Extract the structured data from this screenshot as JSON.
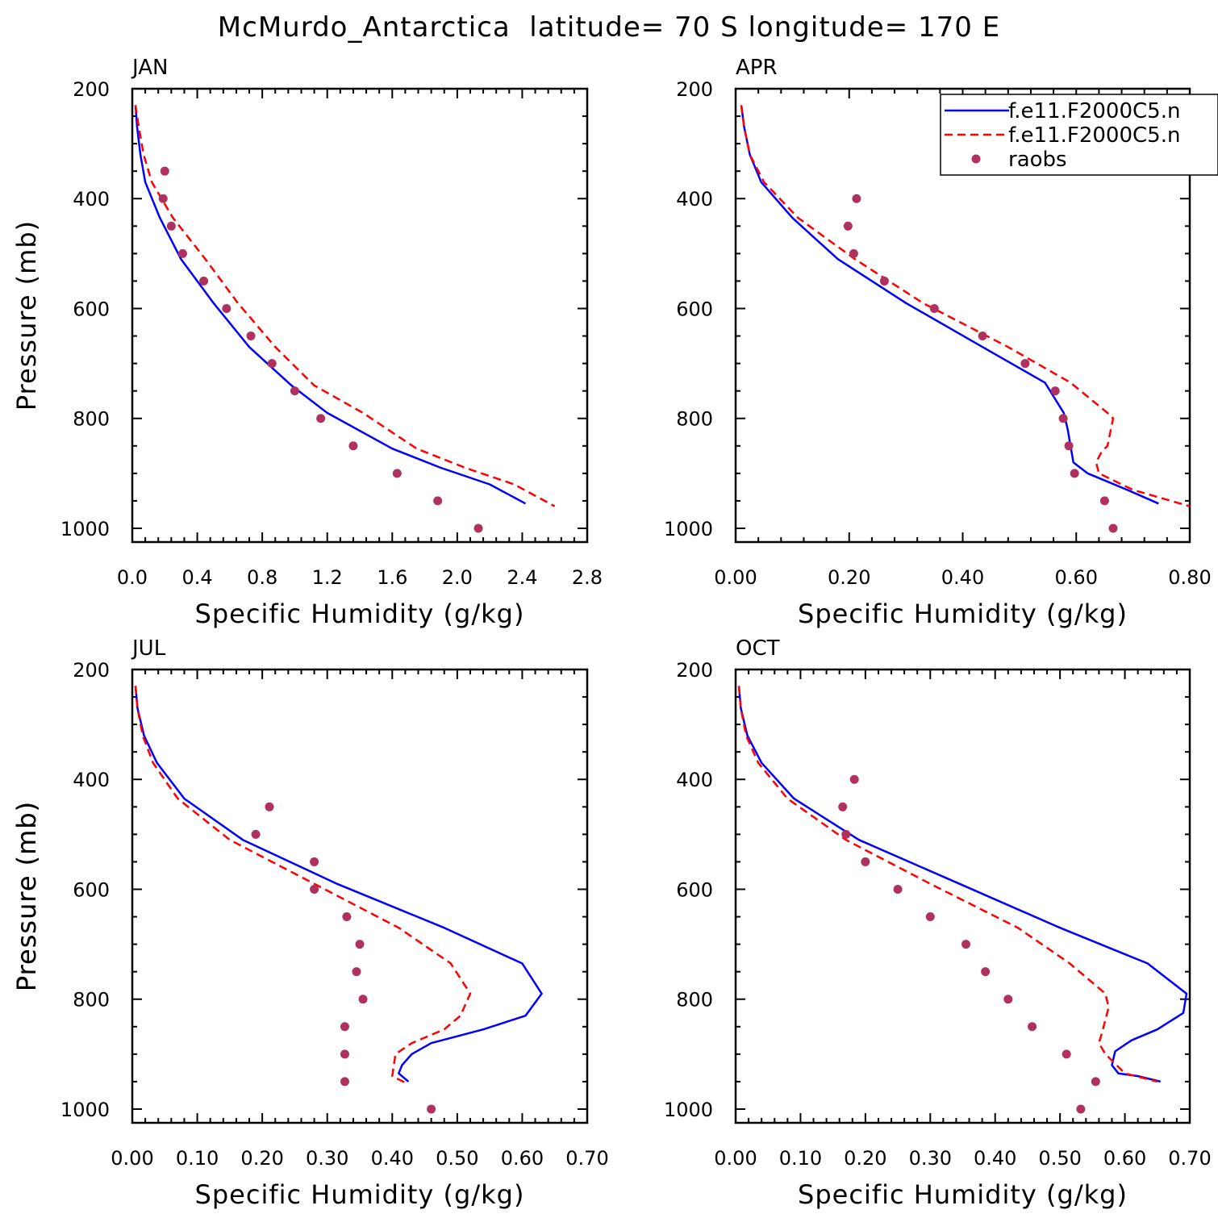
{
  "figure": {
    "title": "McMurdo_Antarctica  latitude= 70 S longitude= 170 E"
  },
  "legend": {
    "entries": [
      {
        "label": "f.e11.F2000C5.n",
        "color": "#0000ff",
        "style": "solid"
      },
      {
        "label": "f.e11.F2000C5.n",
        "color": "#ff0000",
        "style": "dashed"
      },
      {
        "label": "raobs",
        "color": "#b03060",
        "style": "marker"
      }
    ]
  },
  "chart_data": [
    {
      "type": "line",
      "panel": "JAN",
      "xlabel": "Specific Humidity (g/kg)",
      "ylabel": "Pressure (mb)",
      "xlim": [
        0,
        2.8
      ],
      "ylim": [
        1025,
        200
      ],
      "xticks": [
        "0.0",
        "0.4",
        "0.8",
        "1.2",
        "1.6",
        "2.0",
        "2.4",
        "2.8"
      ],
      "yticks": [
        "200",
        "400",
        "600",
        "800",
        "1000"
      ],
      "series": [
        {
          "color": "#0000ff",
          "style": "solid",
          "x": [
            0.02,
            0.03,
            0.05,
            0.08,
            0.17,
            0.3,
            0.5,
            0.72,
            0.98,
            1.2,
            1.6,
            1.9,
            2.2,
            2.42
          ],
          "y": [
            230,
            270,
            320,
            370,
            435,
            510,
            590,
            670,
            740,
            790,
            855,
            890,
            920,
            955
          ]
        },
        {
          "color": "#ff0000",
          "style": "dashed",
          "x": [
            0.02,
            0.04,
            0.07,
            0.12,
            0.25,
            0.45,
            0.65,
            0.88,
            1.12,
            1.42,
            1.75,
            2.05,
            2.35,
            2.6
          ],
          "y": [
            230,
            270,
            320,
            370,
            435,
            510,
            590,
            670,
            740,
            790,
            855,
            890,
            920,
            960
          ]
        },
        {
          "color": "#b03060",
          "style": "marker",
          "x": [
            0.2,
            0.19,
            0.24,
            0.31,
            0.44,
            0.58,
            0.73,
            0.86,
            1.0,
            1.16,
            1.36,
            1.63,
            1.88,
            2.13
          ],
          "y": [
            350,
            400,
            450,
            500,
            550,
            600,
            650,
            700,
            750,
            800,
            850,
            900,
            950,
            1000
          ]
        }
      ]
    },
    {
      "type": "line",
      "panel": "APR",
      "xlabel": "Specific Humidity (g/kg)",
      "ylabel": "",
      "xlim": [
        0,
        0.8
      ],
      "ylim": [
        1025,
        200
      ],
      "xticks": [
        "0.00",
        "0.20",
        "0.40",
        "0.60",
        "0.80"
      ],
      "yticks": [
        "200",
        "400",
        "600",
        "800",
        "1000"
      ],
      "series": [
        {
          "color": "#0000ff",
          "style": "solid",
          "x": [
            0.01,
            0.015,
            0.025,
            0.045,
            0.1,
            0.18,
            0.3,
            0.435,
            0.545,
            0.578,
            0.585,
            0.595,
            0.62,
            0.69,
            0.745
          ],
          "y": [
            230,
            270,
            320,
            370,
            435,
            510,
            590,
            670,
            735,
            790,
            820,
            880,
            900,
            930,
            955
          ]
        },
        {
          "color": "#ff0000",
          "style": "dashed",
          "x": [
            0.01,
            0.015,
            0.025,
            0.05,
            0.11,
            0.21,
            0.33,
            0.48,
            0.59,
            0.655,
            0.665,
            0.655,
            0.645,
            0.635,
            0.64,
            0.7,
            0.8
          ],
          "y": [
            230,
            270,
            320,
            370,
            435,
            510,
            590,
            670,
            735,
            790,
            800,
            850,
            860,
            880,
            900,
            930,
            960
          ]
        },
        {
          "color": "#b03060",
          "style": "marker",
          "x": [
            0.213,
            0.198,
            0.208,
            0.262,
            0.35,
            0.435,
            0.51,
            0.563,
            0.577,
            0.587,
            0.597,
            0.65,
            0.665
          ],
          "y": [
            400,
            450,
            500,
            550,
            600,
            650,
            700,
            750,
            800,
            850,
            900,
            950,
            1000
          ]
        }
      ]
    },
    {
      "type": "line",
      "panel": "JUL",
      "xlabel": "Specific Humidity (g/kg)",
      "ylabel": "Pressure (mb)",
      "xlim": [
        0,
        0.7
      ],
      "ylim": [
        1025,
        200
      ],
      "xticks": [
        "0.00",
        "0.10",
        "0.20",
        "0.30",
        "0.40",
        "0.50",
        "0.60",
        "0.70"
      ],
      "yticks": [
        "200",
        "400",
        "600",
        "800",
        "1000"
      ],
      "series": [
        {
          "color": "#0000ff",
          "style": "solid",
          "x": [
            0.005,
            0.008,
            0.018,
            0.038,
            0.08,
            0.17,
            0.315,
            0.48,
            0.6,
            0.63,
            0.605,
            0.54,
            0.46,
            0.43,
            0.415,
            0.41,
            0.425
          ],
          "y": [
            230,
            270,
            320,
            370,
            435,
            510,
            590,
            670,
            735,
            790,
            830,
            855,
            880,
            900,
            920,
            935,
            950
          ]
        },
        {
          "color": "#ff0000",
          "style": "dashed",
          "x": [
            0.005,
            0.008,
            0.016,
            0.032,
            0.07,
            0.15,
            0.28,
            0.41,
            0.49,
            0.52,
            0.505,
            0.48,
            0.43,
            0.405,
            0.4,
            0.425
          ],
          "y": [
            230,
            270,
            320,
            370,
            435,
            510,
            590,
            670,
            735,
            790,
            830,
            855,
            880,
            900,
            940,
            955
          ]
        },
        {
          "color": "#b03060",
          "style": "marker",
          "x": [
            0.211,
            0.19,
            0.28,
            0.28,
            0.33,
            0.35,
            0.345,
            0.355,
            0.327,
            0.327,
            0.327,
            0.46
          ],
          "y": [
            450,
            500,
            550,
            600,
            650,
            700,
            750,
            800,
            850,
            900,
            950,
            1000
          ]
        }
      ]
    },
    {
      "type": "line",
      "panel": "OCT",
      "xlabel": "Specific Humidity (g/kg)",
      "ylabel": "Pressure (mb)",
      "xlim": [
        0,
        0.7
      ],
      "ylim": [
        1025,
        200
      ],
      "xticks": [
        "0.00",
        "0.10",
        "0.20",
        "0.30",
        "0.40",
        "0.50",
        "0.60",
        "0.70"
      ],
      "yticks": [
        "200",
        "400",
        "600",
        "800",
        "1000"
      ],
      "series": [
        {
          "color": "#0000ff",
          "style": "solid",
          "x": [
            0.005,
            0.008,
            0.018,
            0.04,
            0.09,
            0.19,
            0.345,
            0.5,
            0.635,
            0.695,
            0.69,
            0.65,
            0.61,
            0.585,
            0.58,
            0.59,
            0.62,
            0.655
          ],
          "y": [
            230,
            270,
            320,
            370,
            435,
            510,
            590,
            670,
            735,
            790,
            825,
            855,
            875,
            895,
            920,
            935,
            940,
            950
          ]
        },
        {
          "color": "#ff0000",
          "style": "dashed",
          "x": [
            0.005,
            0.008,
            0.016,
            0.035,
            0.08,
            0.17,
            0.3,
            0.435,
            0.515,
            0.57,
            0.575,
            0.565,
            0.56,
            0.57,
            0.6,
            0.65
          ],
          "y": [
            230,
            270,
            320,
            370,
            435,
            510,
            590,
            670,
            735,
            790,
            815,
            860,
            880,
            900,
            935,
            950
          ]
        },
        {
          "color": "#b03060",
          "style": "marker",
          "x": [
            0.183,
            0.165,
            0.17,
            0.2,
            0.25,
            0.3,
            0.355,
            0.385,
            0.42,
            0.457,
            0.51,
            0.555,
            0.532
          ],
          "y": [
            400,
            450,
            500,
            550,
            600,
            650,
            700,
            750,
            800,
            850,
            900,
            950,
            1000
          ]
        }
      ]
    }
  ]
}
